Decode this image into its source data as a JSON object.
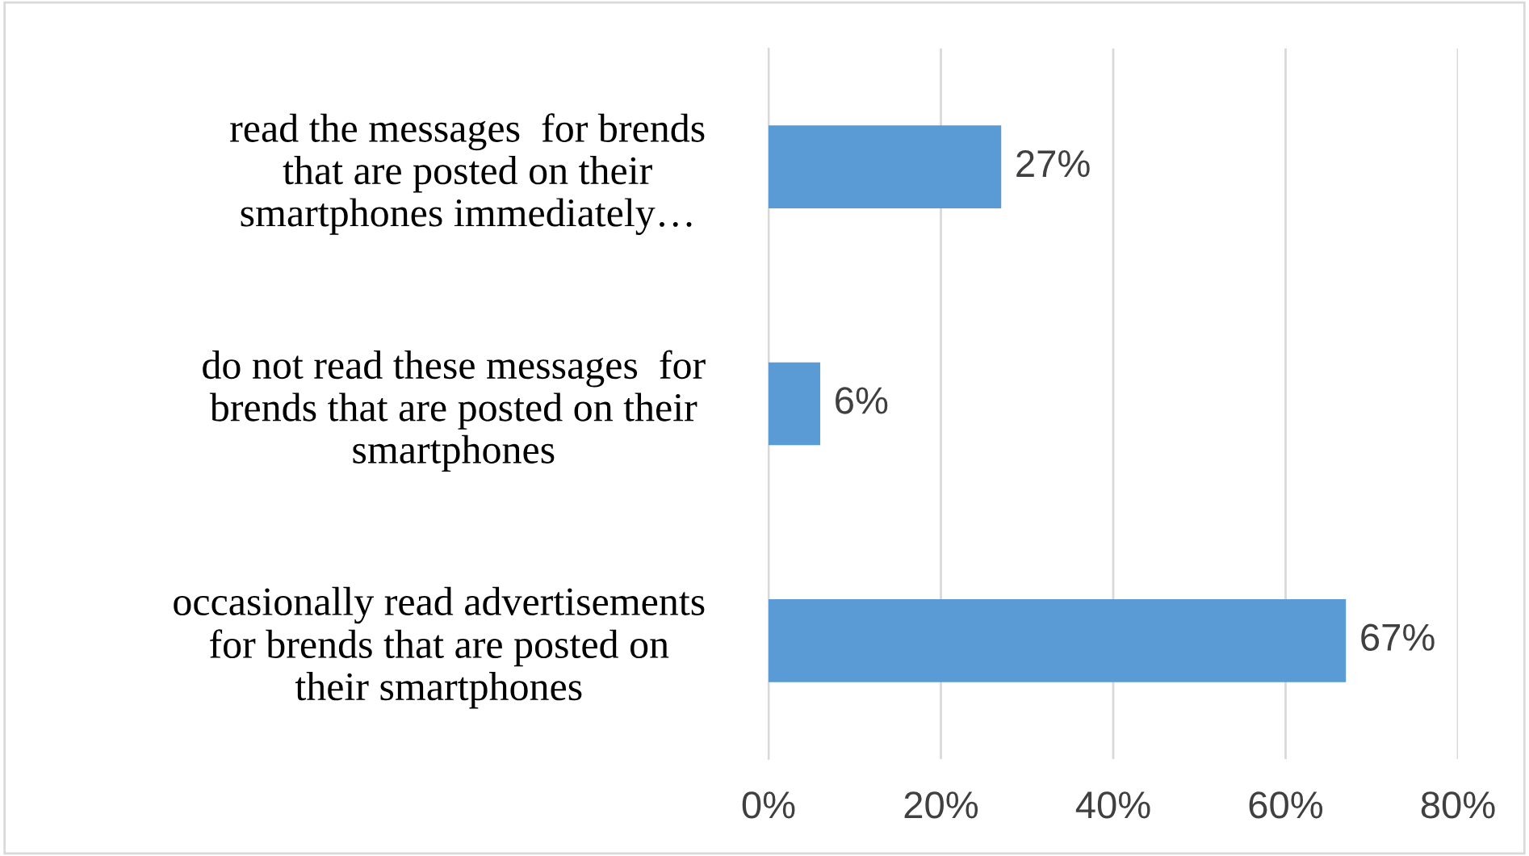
{
  "chart_data": {
    "type": "bar",
    "orientation": "horizontal",
    "categories": [
      "read the messages  for brends\nthat are posted on their\nsmartphones immediately…",
      "do not read these messages  for\nbrends that are posted on their\nsmartphones",
      "occasionally read advertisements\nfor brends that are posted on\ntheir smartphones"
    ],
    "values": [
      27,
      6,
      67
    ],
    "value_labels": [
      "27%",
      "6%",
      "67%"
    ],
    "color": "#5b9bd5",
    "xlim": [
      0,
      80
    ],
    "xticks": [
      {
        "value": 0,
        "label": "0%"
      },
      {
        "value": 20,
        "label": "20%"
      },
      {
        "value": 40,
        "label": "40%"
      },
      {
        "value": 60,
        "label": "60%"
      },
      {
        "value": 80,
        "label": "80%"
      }
    ],
    "grid": "x"
  }
}
